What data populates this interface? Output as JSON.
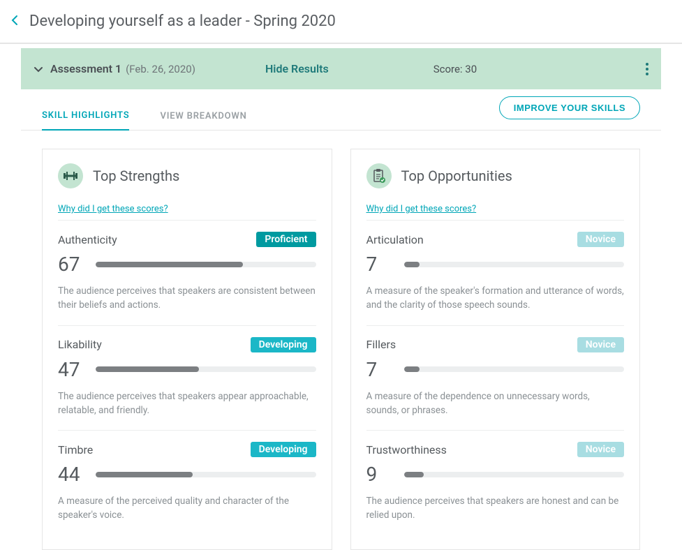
{
  "page_title": "Developing yourself as a leader - Spring 2020",
  "banner": {
    "title": "Assessment 1",
    "date": "(Feb. 26, 2020)",
    "hide_label": "Hide Results",
    "score_label": "Score: 30"
  },
  "tabs": {
    "highlights": "SKILL HIGHLIGHTS",
    "breakdown": "VIEW BREAKDOWN"
  },
  "improve_label": "IMPROVE YOUR SKILLS",
  "strengths_card": {
    "title": "Top Strengths",
    "why_link": "Why did I get these scores?",
    "skills": [
      {
        "name": "Authenticity",
        "score": 67,
        "level": "Proficient",
        "level_class": "proficient",
        "desc": "The audience perceives that speakers are consistent between their beliefs and actions."
      },
      {
        "name": "Likability",
        "score": 47,
        "level": "Developing",
        "level_class": "developing",
        "desc": "The audience perceives that speakers appear approachable, relatable, and friendly."
      },
      {
        "name": "Timbre",
        "score": 44,
        "level": "Developing",
        "level_class": "developing",
        "desc": "A measure of the perceived quality and character of the speaker's voice."
      }
    ]
  },
  "opportunities_card": {
    "title": "Top Opportunities",
    "why_link": "Why did I get these scores?",
    "skills": [
      {
        "name": "Articulation",
        "score": 7,
        "level": "Novice",
        "level_class": "novice",
        "desc": "A measure of the speaker's formation and utterance of words, and the clarity of those speech sounds."
      },
      {
        "name": "Fillers",
        "score": 7,
        "level": "Novice",
        "level_class": "novice",
        "desc": "A measure of the dependence on unnecessary words, sounds, or phrases."
      },
      {
        "name": "Trustworthiness",
        "score": 9,
        "level": "Novice",
        "level_class": "novice",
        "desc": "The audience perceives that speakers are honest and can be relied upon."
      }
    ]
  },
  "colors": {
    "accent": "#00a6b7",
    "banner_bg": "#c3e4d1",
    "badge_proficient": "#009aa0",
    "badge_developing": "#1bb7c7",
    "badge_novice": "#a8dde2",
    "bar_fill": "#7c7f82",
    "bar_track": "#eceeef"
  }
}
